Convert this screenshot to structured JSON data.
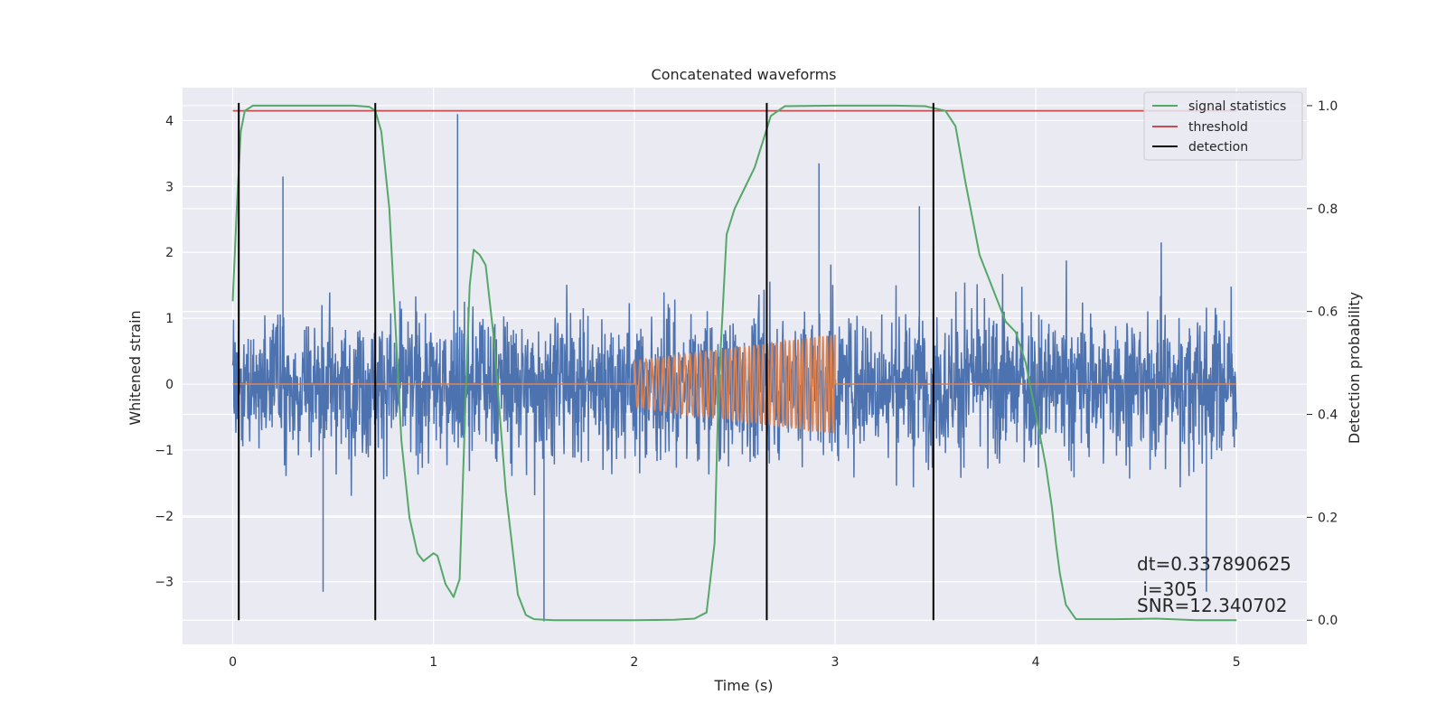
{
  "chart_data": {
    "type": "line",
    "title": "Concatenated waveforms",
    "xlabel": "Time (s)",
    "ylabel": "Whitened strain",
    "ylabel_right": "Detection probability",
    "xlim": [
      -0.25,
      5.35
    ],
    "ylim": [
      -3.95,
      4.5
    ],
    "ylim_right": [
      -0.047,
      1.035
    ],
    "x_ticks": [
      0,
      1,
      2,
      3,
      4,
      5
    ],
    "y_ticks": [
      -3,
      -2,
      -1,
      0,
      1,
      2,
      3,
      4
    ],
    "y_ticks_right": [
      0.0,
      0.2,
      0.4,
      0.6,
      0.8,
      1.0
    ],
    "grid": true,
    "legend_position": "upper-right",
    "legend": [
      "signal statistics",
      "threshold",
      "detection"
    ],
    "colors": {
      "strain": "#4c72b0",
      "injection": "#dd8452",
      "signal_statistics": "#55a868",
      "threshold": "#c44e52",
      "detection": "#000000",
      "background": "#eaeaf2",
      "grid": "#ffffff"
    },
    "series": [
      {
        "name": "",
        "axis": "left",
        "kind": "noise",
        "x_range": [
          0,
          5
        ],
        "approx_std": 0.75,
        "notable_peaks": [
          [
            0.25,
            3.15
          ],
          [
            0.45,
            -3.15
          ],
          [
            1.12,
            4.1
          ],
          [
            1.55,
            -3.6
          ],
          [
            2.92,
            3.35
          ],
          [
            3.42,
            2.7
          ],
          [
            4.85,
            -3.15
          ]
        ]
      },
      {
        "name": "",
        "axis": "left",
        "kind": "chirp",
        "x_range": [
          2.0,
          3.0
        ],
        "amplitude_start": 0.35,
        "amplitude_end": 0.75,
        "approx_cycles": 42
      },
      {
        "name": "signal statistics",
        "axis": "right",
        "x": [
          0,
          0.02,
          0.04,
          0.06,
          0.1,
          0.2,
          0.4,
          0.6,
          0.68,
          0.71,
          0.74,
          0.78,
          0.8,
          0.84,
          0.88,
          0.92,
          0.95,
          1.0,
          1.02,
          1.06,
          1.1,
          1.13,
          1.16,
          1.18,
          1.2,
          1.23,
          1.26,
          1.3,
          1.36,
          1.42,
          1.46,
          1.5,
          1.6,
          1.8,
          2.0,
          2.2,
          2.3,
          2.36,
          2.4,
          2.42,
          2.44,
          2.46,
          2.5,
          2.55,
          2.6,
          2.64,
          2.68,
          2.75,
          3.0,
          3.3,
          3.45,
          3.55,
          3.6,
          3.65,
          3.72,
          3.8,
          3.85,
          3.9,
          3.95,
          4.0,
          4.05,
          4.08,
          4.1,
          4.12,
          4.15,
          4.2,
          4.4,
          4.6,
          4.8,
          5.0
        ],
        "values": [
          0.62,
          0.8,
          0.95,
          0.99,
          1.0,
          1.0,
          1.0,
          1.0,
          0.998,
          0.99,
          0.95,
          0.8,
          0.65,
          0.35,
          0.2,
          0.13,
          0.115,
          0.13,
          0.125,
          0.07,
          0.045,
          0.08,
          0.43,
          0.65,
          0.72,
          0.71,
          0.69,
          0.55,
          0.25,
          0.05,
          0.01,
          0.002,
          0.0,
          0.0,
          0.0,
          0.001,
          0.003,
          0.015,
          0.15,
          0.45,
          0.6,
          0.75,
          0.8,
          0.84,
          0.88,
          0.93,
          0.98,
          0.999,
          1.0,
          1.0,
          0.999,
          0.99,
          0.96,
          0.85,
          0.71,
          0.63,
          0.58,
          0.56,
          0.5,
          0.4,
          0.3,
          0.22,
          0.15,
          0.09,
          0.03,
          0.002,
          0.002,
          0.003,
          0.0,
          0.0
        ]
      },
      {
        "name": "threshold",
        "axis": "right",
        "x": [
          0,
          5
        ],
        "values": [
          0.99,
          0.99
        ]
      }
    ],
    "detections": [
      0.03,
      0.71,
      2.66,
      3.49
    ],
    "annotations": [
      "dt=0.337890625",
      " i=305",
      "SNR=12.340702"
    ]
  }
}
